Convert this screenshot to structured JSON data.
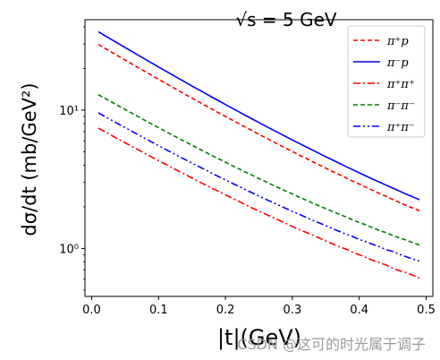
{
  "chart_data": {
    "type": "line",
    "title": "√s = 5 GeV",
    "xlabel": "|t|(GeV)",
    "ylabel": "dσ/dt (mb/GeV²)",
    "x": [
      0.01,
      0.02,
      0.03,
      0.04,
      0.05,
      0.06,
      0.07,
      0.08,
      0.09,
      0.1,
      0.11,
      0.12,
      0.13,
      0.14,
      0.15,
      0.16,
      0.17,
      0.18,
      0.19,
      0.2,
      0.21,
      0.22,
      0.23,
      0.24,
      0.25,
      0.26,
      0.27,
      0.28,
      0.29,
      0.3,
      0.31,
      0.32,
      0.33,
      0.34,
      0.35,
      0.36,
      0.37,
      0.38,
      0.39,
      0.4,
      0.41,
      0.42,
      0.43,
      0.44,
      0.45,
      0.46,
      0.47,
      0.48,
      0.49
    ],
    "series": [
      {
        "name": "π⁺p",
        "color": "#ff0000",
        "linestyle": "dashed",
        "values": [
          29.81,
          27.93,
          26.17,
          24.53,
          22.99,
          21.56,
          20.21,
          18.96,
          17.79,
          16.7,
          15.67,
          14.71,
          13.82,
          12.98,
          12.2,
          11.47,
          10.79,
          10.15,
          9.55,
          8.99,
          8.47,
          7.98,
          7.52,
          7.09,
          6.68,
          6.31,
          5.95,
          5.62,
          5.31,
          5.02,
          4.74,
          4.49,
          4.24,
          4.02,
          3.8,
          3.6,
          3.42,
          3.24,
          3.07,
          2.92,
          2.77,
          2.63,
          2.5,
          2.38,
          2.26,
          2.15,
          2.05,
          1.96,
          1.87
        ]
      },
      {
        "name": "π⁻p",
        "color": "#0000ff",
        "linestyle": "solid",
        "values": [
          36.82,
          34.47,
          32.28,
          30.23,
          28.32,
          26.53,
          24.87,
          23.31,
          21.86,
          20.5,
          19.23,
          18.05,
          16.94,
          15.9,
          14.93,
          14.03,
          13.19,
          12.4,
          11.66,
          10.97,
          10.32,
          9.72,
          9.15,
          8.62,
          8.13,
          7.66,
          7.23,
          6.82,
          6.44,
          6.08,
          5.75,
          5.43,
          5.14,
          4.86,
          4.6,
          4.36,
          4.13,
          3.91,
          3.71,
          3.52,
          3.34,
          3.17,
          3.02,
          2.87,
          2.73,
          2.6,
          2.47,
          2.36,
          2.25
        ]
      },
      {
        "name": "π⁺π⁺",
        "color": "#ff0000",
        "linestyle": "dashdot",
        "values": [
          7.41,
          6.97,
          6.55,
          6.17,
          5.81,
          5.47,
          5.15,
          4.85,
          4.57,
          4.31,
          4.07,
          3.84,
          3.62,
          3.42,
          3.23,
          3.05,
          2.88,
          2.72,
          2.58,
          2.44,
          2.31,
          2.19,
          2.07,
          1.96,
          1.86,
          1.77,
          1.68,
          1.6,
          1.52,
          1.44,
          1.37,
          1.31,
          1.25,
          1.19,
          1.13,
          1.08,
          1.03,
          0.99,
          0.94,
          0.9,
          0.86,
          0.82,
          0.79,
          0.76,
          0.72,
          0.69,
          0.67,
          0.64,
          0.61
        ]
      },
      {
        "name": "π⁻π⁻",
        "color": "#008000",
        "linestyle": "dashed",
        "values": [
          12.93,
          12.15,
          11.42,
          10.74,
          10.1,
          9.5,
          8.94,
          8.41,
          7.92,
          7.46,
          7.03,
          6.63,
          6.25,
          5.9,
          5.57,
          5.26,
          4.97,
          4.69,
          4.44,
          4.2,
          3.97,
          3.76,
          3.56,
          3.38,
          3.2,
          3.04,
          2.88,
          2.74,
          2.6,
          2.48,
          2.35,
          2.24,
          2.13,
          2.03,
          1.94,
          1.85,
          1.77,
          1.69,
          1.61,
          1.54,
          1.48,
          1.41,
          1.35,
          1.3,
          1.24,
          1.19,
          1.15,
          1.1,
          1.06
        ]
      },
      {
        "name": "π⁺π⁻",
        "color": "#0000ff",
        "linestyle": "dashdotdot",
        "values": [
          9.55,
          8.98,
          8.44,
          7.94,
          7.47,
          7.03,
          6.62,
          6.23,
          5.87,
          5.53,
          5.21,
          4.92,
          4.64,
          4.38,
          4.14,
          3.91,
          3.7,
          3.49,
          3.3,
          3.13,
          2.96,
          2.81,
          2.66,
          2.52,
          2.39,
          2.27,
          2.16,
          2.05,
          1.95,
          1.85,
          1.77,
          1.68,
          1.6,
          1.53,
          1.46,
          1.39,
          1.33,
          1.27,
          1.22,
          1.16,
          1.12,
          1.07,
          1.03,
          0.98,
          0.95,
          0.91,
          0.87,
          0.84,
          0.81
        ]
      }
    ],
    "xticks": [
      "0.0",
      "0.1",
      "0.2",
      "0.3",
      "0.4",
      "0.5"
    ],
    "xtick_values": [
      0.0,
      0.1,
      0.2,
      0.3,
      0.4,
      0.5
    ],
    "yticks": [
      "10⁰",
      "10¹"
    ],
    "ytick_values": [
      1,
      10
    ],
    "xlim": [
      -0.01,
      0.51
    ],
    "ylim": [
      0.45,
      45
    ],
    "yscale": "log",
    "grid": false,
    "legend_position": "top-right"
  },
  "watermark": "CSDN @这可的时光属于调子"
}
